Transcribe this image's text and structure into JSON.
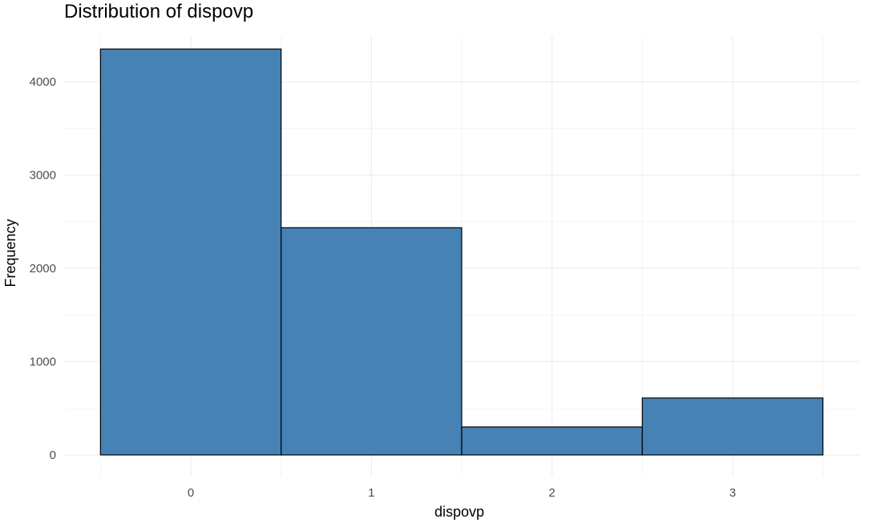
{
  "chart_data": {
    "type": "bar",
    "title": "Distribution of dispovp",
    "xlabel": "dispovp",
    "ylabel": "Frequency",
    "categories": [
      "0",
      "1",
      "2",
      "3"
    ],
    "values": [
      4350,
      2435,
      300,
      610
    ],
    "yticks": [
      "0",
      "1000",
      "2000",
      "3000",
      "4000"
    ],
    "ytick_values": [
      0,
      1000,
      2000,
      3000,
      4000
    ],
    "ylim": [
      0,
      4350
    ],
    "grid": true,
    "legend": "none",
    "bar_fill": "#4682b4",
    "bar_outline": "#000000"
  }
}
